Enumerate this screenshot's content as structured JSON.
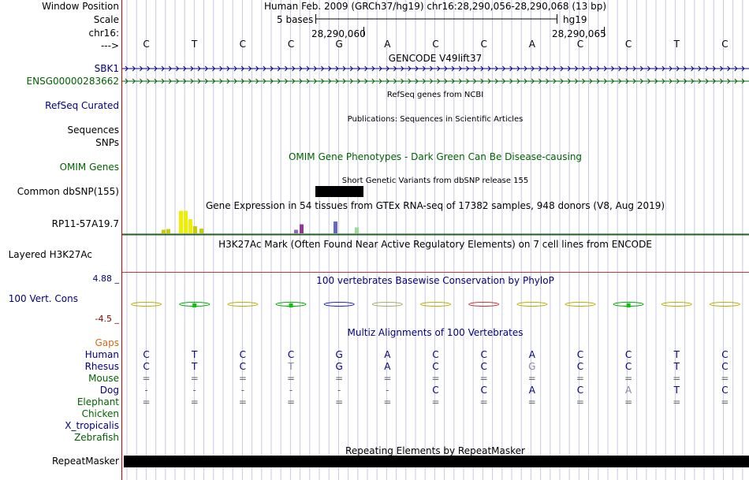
{
  "labels": {
    "window_position": "Window Position",
    "scale": "Scale",
    "chrom": "chr16:",
    "arrow": "--->",
    "sbk1": "SBK1",
    "ensg": "ENSG00000283662",
    "refseq": "RefSeq Curated",
    "sequences": "Sequences",
    "snps": "SNPs",
    "omim": "OMIM Genes",
    "dbsnp": "Common dbSNP(155)",
    "gtex_gene": "RP11-57A19.7",
    "h3k27ac": "Layered H3K27Ac",
    "cons": "100 Vert. Cons",
    "gaps": "Gaps",
    "repeatmasker": "RepeatMasker"
  },
  "header": {
    "position_text": "Human Feb. 2009 (GRCh37/hg19)   chr16:28,290,056-28,290,068 (13 bp)",
    "scale_text": "5 bases",
    "assembly": "hg19",
    "tick1": "28,290,060",
    "tick2": "28,290,065"
  },
  "bases": [
    "C",
    "T",
    "C",
    "C",
    "G",
    "A",
    "C",
    "C",
    "A",
    "C",
    "C",
    "T",
    "C"
  ],
  "titles": {
    "gencode": "GENCODE V49lift37",
    "refseq": "RefSeq genes from NCBI",
    "publications": "Publications: Sequences in Scientific Articles",
    "omim": "OMIM Gene Phenotypes - Dark Green Can Be Disease-causing",
    "dbsnp": "Short Genetic Variants from dbSNP release 155",
    "gtex": "Gene Expression in 54 tissues from GTEx RNA-seq of 17382 samples, 948 donors (V8, Aug 2019)",
    "h3k27ac": "H3K27Ac Mark (Often Found Near Active Regulatory Elements) on 7 cell lines from ENCODE",
    "phylop": "100 vertebrates Basewise Conservation by PhyloP",
    "multiz": "Multiz Alignments of 100 Vertebrates",
    "repeatmasker": "Repeating Elements by RepeatMasker"
  },
  "cons_axis": {
    "max": "4.88 _",
    "min": "-4.5 _"
  },
  "species": [
    {
      "name": "Human",
      "color": "#000080",
      "row": [
        "C",
        "T",
        "C",
        "C",
        "G",
        "A",
        "C",
        "C",
        "A",
        "C",
        "C",
        "T",
        "C"
      ]
    },
    {
      "name": "Rhesus",
      "color": "#000080",
      "row": [
        "C",
        "T",
        "C",
        "T",
        "G",
        "A",
        "C",
        "C",
        "G",
        "C",
        "C",
        "T",
        "C"
      ]
    },
    {
      "name": "Mouse",
      "color": "#006400",
      "row": [
        "=",
        "=",
        "=",
        "=",
        "=",
        "=",
        "=",
        "=",
        "=",
        "=",
        "=",
        "=",
        "="
      ]
    },
    {
      "name": "Dog",
      "color": "#000080",
      "row": [
        "-",
        "-",
        "-",
        "-",
        "-",
        "-",
        "C",
        "C",
        "A",
        "C",
        "A",
        "T",
        "C"
      ]
    },
    {
      "name": "Elephant",
      "color": "#006400",
      "row": [
        "=",
        "=",
        "=",
        "=",
        "=",
        "=",
        "=",
        "=",
        "=",
        "=",
        "=",
        "=",
        "="
      ]
    },
    {
      "name": "Chicken",
      "color": "#006400",
      "row": []
    },
    {
      "name": "X_tropicalis",
      "color": "#000080",
      "row": []
    },
    {
      "name": "Zebrafish",
      "color": "#006400",
      "row": []
    }
  ],
  "gtex_bars": [
    {
      "tissue_color": "#cccc00",
      "value": 0.15
    },
    {
      "tissue_color": "#cccc00",
      "value": 0.18
    },
    {
      "tissue_color": "#eeee00",
      "value": 0.95
    },
    {
      "tissue_color": "#eeee00",
      "value": 0.95
    },
    {
      "tissue_color": "#eeee00",
      "value": 0.6
    },
    {
      "tissue_color": "#cccc00",
      "value": 0.3
    },
    {
      "tissue_color": "#cccc00",
      "value": 0.2
    },
    {
      "tissue_color": "#9966cc",
      "value": 0.15
    },
    {
      "tissue_color": "#993399",
      "value": 0.38
    },
    {
      "tissue_color": "#6666cc",
      "value": 0.5
    },
    {
      "tissue_color": "#99dd99",
      "value": 0.25
    }
  ],
  "colors": {
    "accent_red": "#cc0000",
    "navy": "#000080",
    "green": "#006400"
  }
}
